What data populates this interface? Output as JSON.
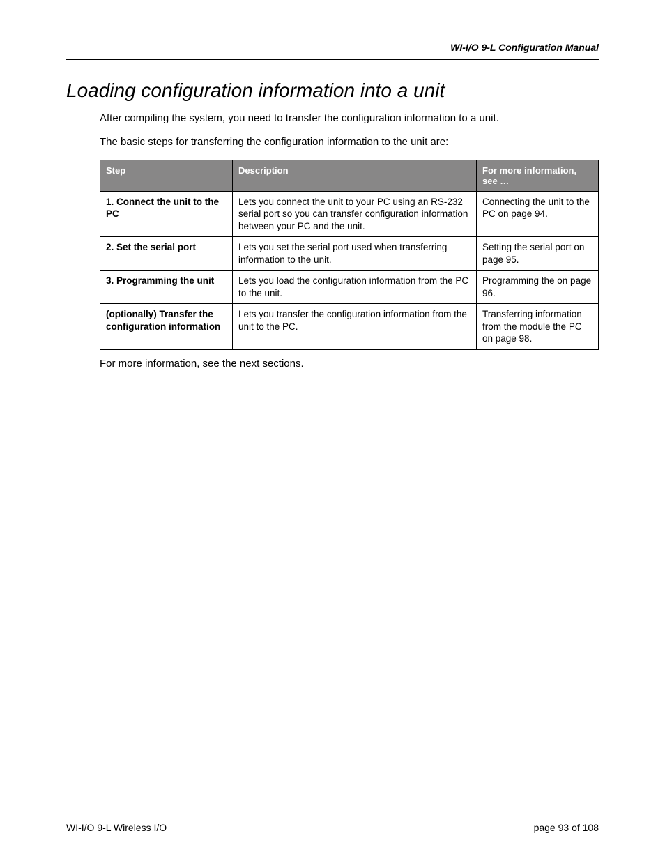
{
  "header": {
    "manual_title": "WI-I/O 9-L Configuration Manual"
  },
  "section": {
    "title": "Loading configuration information into a unit",
    "intro_1": "After compiling the system, you need to transfer the configuration information to a unit.",
    "intro_2": "The basic steps for transferring the configuration information to the unit are:",
    "outro": "For more information, see the next sections."
  },
  "table": {
    "columns": {
      "step": "Step",
      "description": "Description",
      "reference": "For more information, see …"
    },
    "rows": [
      {
        "step": "1. Connect the unit to the PC",
        "description": "Lets you connect the unit to your PC using an RS-232 serial port so you can transfer configuration information between your PC and the unit.",
        "reference": "Connecting the unit to the PC on page 94."
      },
      {
        "step": "2. Set the serial port",
        "description": "Lets you set the serial port used when transferring information to the unit.",
        "reference": "Setting the serial port on page 95."
      },
      {
        "step": "3. Programming the unit",
        "description": "Lets you load the configuration information from the PC to the unit.",
        "reference": "Programming the  on page 96."
      },
      {
        "step": "(optionally) Transfer the configuration information",
        "description": "Lets you transfer the configuration information from the unit to the PC.",
        "reference": "Transferring information from the module the PC on page 98."
      }
    ]
  },
  "footer": {
    "left": "WI-I/O 9-L Wireless I/O",
    "right": "page  93 of 108"
  }
}
